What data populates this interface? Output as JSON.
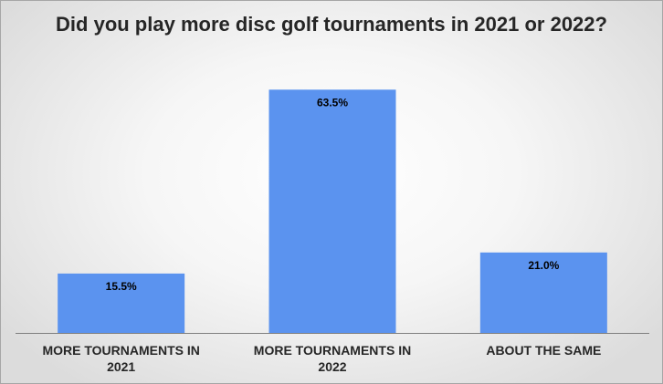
{
  "chart_data": {
    "type": "bar",
    "title": "Did you play more disc golf tournaments in 2021 or 2022?",
    "categories": [
      [
        "MORE TOURNAMENTS IN",
        "2021"
      ],
      [
        "MORE TOURNAMENTS IN",
        "2022"
      ],
      [
        "ABOUT THE SAME"
      ]
    ],
    "values": [
      15.5,
      63.5,
      21.0
    ],
    "value_labels": [
      "15.5%",
      "63.5%",
      "21.0%"
    ],
    "unit": "%",
    "ylim": [
      0,
      70
    ],
    "grid": false,
    "legend": "none",
    "colors": {
      "bar": "#5b93ef",
      "axis": "#7f7f7f",
      "text": "#262626",
      "label": "#000000"
    }
  }
}
